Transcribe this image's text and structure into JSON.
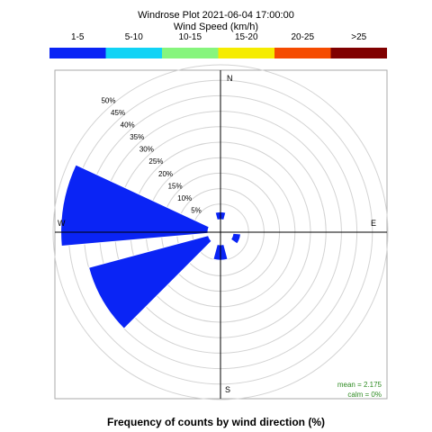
{
  "chart_data": {
    "type": "windrose",
    "title": "Windrose Plot  2021-06-04 17:00:00",
    "subtitle": "Wind Speed (km/h)",
    "footer": "Frequency of counts by wind direction (%)",
    "speed_bins": [
      {
        "label": "1-5",
        "color": "#0a24f5"
      },
      {
        "label": "5-10",
        "color": "#11d3f5"
      },
      {
        "label": "10-15",
        "color": "#86f57d"
      },
      {
        "label": "15-20",
        "color": "#f5ec00"
      },
      {
        "label": "20-25",
        "color": "#f54b00"
      },
      {
        "label": ">25",
        "color": "#800000"
      }
    ],
    "rings": [
      5,
      10,
      15,
      20,
      25,
      30,
      35,
      40,
      45,
      50
    ],
    "ring_labels": [
      "5%",
      "10%",
      "15%",
      "20%",
      "25%",
      "30%",
      "35%",
      "40%",
      "45%",
      "50%"
    ],
    "max_ring": 50,
    "directions": {
      "N": "N",
      "E": "E",
      "S": "S",
      "W": "W"
    },
    "sectors": [
      {
        "direction_deg": 0,
        "values": [
          2.5,
          0,
          0,
          0,
          0,
          0
        ]
      },
      {
        "direction_deg": 110,
        "values": [
          2.5,
          0,
          0,
          0,
          0,
          0
        ]
      },
      {
        "direction_deg": 180,
        "values": [
          5,
          0,
          0,
          0,
          0,
          0
        ]
      },
      {
        "direction_deg": 240,
        "values": [
          40,
          0,
          0,
          0,
          0,
          0
        ]
      },
      {
        "direction_deg": 280,
        "values": [
          47.5,
          0,
          0,
          0,
          0,
          0
        ]
      }
    ],
    "stats": {
      "mean": "mean = 2.175",
      "calm": "calm = 0%"
    }
  }
}
